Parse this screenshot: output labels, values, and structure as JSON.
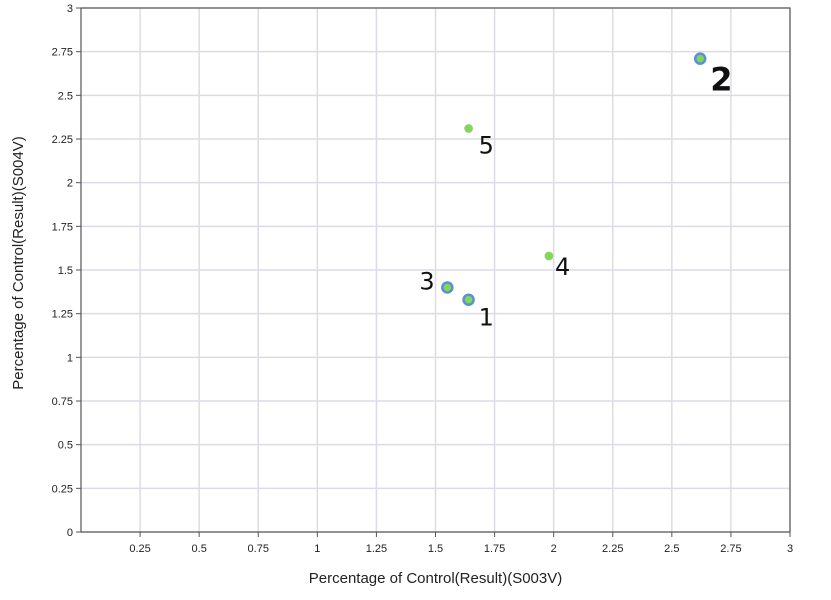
{
  "chart_data": {
    "type": "scatter",
    "xlabel": "Percentage of Control(Result)(S003V)",
    "ylabel": "Percentage of Control(Result)(S004V)",
    "xlim": [
      0,
      3
    ],
    "ylim": [
      0,
      3
    ],
    "x_ticks": [
      "0.25",
      "0.5",
      "0.75",
      "1",
      "1.25",
      "1.5",
      "1.75",
      "2",
      "2.25",
      "2.5",
      "2.75",
      "3"
    ],
    "y_ticks": [
      "0",
      "0.25",
      "0.5",
      "0.75",
      "1",
      "1.25",
      "1.5",
      "1.75",
      "2",
      "2.25",
      "2.5",
      "2.75",
      "3"
    ],
    "grid": true,
    "points": [
      {
        "label": "1",
        "x": 1.64,
        "y": 1.33,
        "selected": true
      },
      {
        "label": "2",
        "x": 2.62,
        "y": 2.71,
        "selected": true,
        "highlight": true
      },
      {
        "label": "3",
        "x": 1.55,
        "y": 1.4,
        "selected": true
      },
      {
        "label": "4",
        "x": 1.98,
        "y": 1.58,
        "selected": false
      },
      {
        "label": "5",
        "x": 1.64,
        "y": 2.31,
        "selected": false
      }
    ],
    "colors": {
      "point_fill": "#7ed957",
      "selected_ring": "#5b8fd6",
      "highlight_label": "#6a4df2",
      "grid": "#dcdce6",
      "frame": "#555555"
    }
  }
}
